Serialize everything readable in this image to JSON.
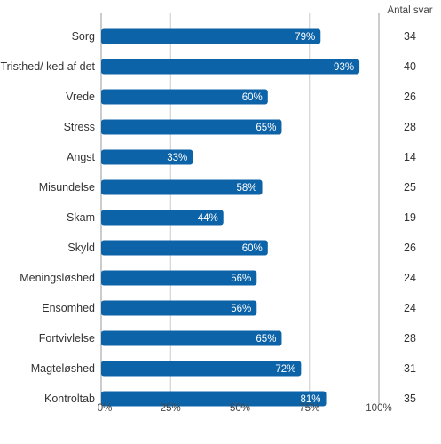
{
  "chart_data": {
    "type": "bar",
    "orientation": "horizontal",
    "categories": [
      "Sorg",
      "Tristhed/ ked af det",
      "Vrede",
      "Stress",
      "Angst",
      "Misundelse",
      "Skam",
      "Skyld",
      "Meningsløshed",
      "Ensomhed",
      "Fortvivlelse",
      "Magteløshed",
      "Kontroltab"
    ],
    "values": [
      79,
      93,
      60,
      65,
      33,
      58,
      44,
      60,
      56,
      56,
      65,
      72,
      81
    ],
    "value_labels": [
      "79%",
      "93%",
      "60%",
      "65%",
      "33%",
      "58%",
      "44%",
      "60%",
      "56%",
      "56%",
      "65%",
      "72%",
      "81%"
    ],
    "xlim": [
      0,
      100
    ],
    "x_ticks": [
      0,
      25,
      50,
      75,
      100
    ],
    "x_tick_labels": [
      "0%",
      "25%",
      "50%",
      "75%",
      "100%"
    ],
    "grid": "vertical",
    "bar_color": "#0c63a8",
    "count_title": "Antal svar",
    "counts": [
      "34",
      "40",
      "26",
      "28",
      "14",
      "25",
      "19",
      "26",
      "24",
      "24",
      "28",
      "31",
      "35"
    ]
  }
}
